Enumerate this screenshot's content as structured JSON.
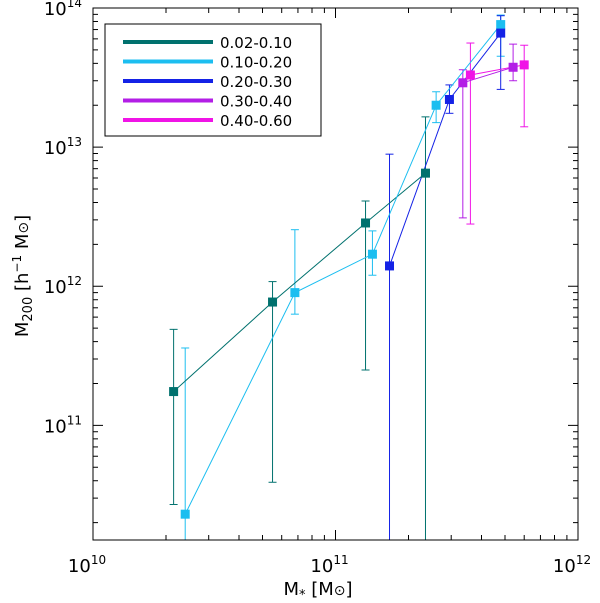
{
  "chart_data": {
    "type": "scatter",
    "x_scale": "log",
    "y_scale": "log",
    "xlim": [
      10000000000.0,
      1000000000000.0
    ],
    "ylim": [
      15000000000.0,
      100000000000000.0
    ],
    "xlabel": {
      "main": "M",
      "sub": "*",
      "rest": " [M",
      "sym": "⊙",
      "close": "]"
    },
    "ylabel": {
      "main": "M",
      "sub": "200",
      "rest": " [h",
      "sup": "−1",
      "rest2": " M",
      "sym": "⊙",
      "close": "]"
    },
    "x_ticks": [
      {
        "value": 10000000000.0,
        "base": "10",
        "exp": "10"
      },
      {
        "value": 100000000000.0,
        "base": "10",
        "exp": "11"
      },
      {
        "value": 1000000000000.0,
        "base": "10",
        "exp": "12"
      }
    ],
    "y_ticks": [
      {
        "value": 100000000000.0,
        "base": "10",
        "exp": "11"
      },
      {
        "value": 1000000000000.0,
        "base": "10",
        "exp": "12"
      },
      {
        "value": 10000000000000.0,
        "base": "10",
        "exp": "13"
      },
      {
        "value": 100000000000000.0,
        "base": "10",
        "exp": "14"
      }
    ],
    "legend_position": "top-left",
    "series": [
      {
        "name": "0.02-0.10",
        "color": "#00716e",
        "points": [
          {
            "x": 21500000000.0,
            "y": 175000000000.0,
            "ylo": 27000000000.0,
            "yhi": 490000000000.0
          },
          {
            "x": 55000000000.0,
            "y": 770000000000.0,
            "ylo": 39000000000.0,
            "yhi": 1080000000000.0
          },
          {
            "x": 133000000000.0,
            "y": 2850000000000.0,
            "ylo": 250000000000.0,
            "yhi": 4100000000000.0
          },
          {
            "x": 235000000000.0,
            "y": 6500000000000.0,
            "ylo": 10000000000.0,
            "yhi": 16500000000000.0
          }
        ]
      },
      {
        "name": "0.10-0.20",
        "color": "#1cbef0",
        "points": [
          {
            "x": 24000000000.0,
            "y": 23000000000.0,
            "ylo": 10000000000.0,
            "yhi": 360000000000.0
          },
          {
            "x": 68000000000.0,
            "y": 900000000000.0,
            "ylo": 630000000000.0,
            "yhi": 2550000000000.0
          },
          {
            "x": 142000000000.0,
            "y": 1700000000000.0,
            "ylo": 1200000000000.0,
            "yhi": 2500000000000.0
          },
          {
            "x": 260000000000.0,
            "y": 20000000000000.0,
            "ylo": 15000000000000.0,
            "yhi": 25000000000000.0
          },
          {
            "x": 480000000000.0,
            "y": 76000000000000.0,
            "ylo": 45000000000000.0,
            "yhi": 89000000000000.0
          }
        ]
      },
      {
        "name": "0.20-0.30",
        "color": "#1422e6",
        "points": [
          {
            "x": 167000000000.0,
            "y": 1400000000000.0,
            "ylo": 10000000000.0,
            "yhi": 8900000000000.0
          },
          {
            "x": 295000000000.0,
            "y": 22000000000000.0,
            "ylo": 17500000000000.0,
            "yhi": 28000000000000.0
          },
          {
            "x": 480000000000.0,
            "y": 66000000000000.0,
            "ylo": 26000000000000.0,
            "yhi": 88000000000000.0
          }
        ]
      },
      {
        "name": "0.30-0.40",
        "color": "#b31ee6",
        "points": [
          {
            "x": 335000000000.0,
            "y": 29000000000000.0,
            "ylo": 3100000000000.0,
            "yhi": 36000000000000.0
          },
          {
            "x": 540000000000.0,
            "y": 37500000000000.0,
            "ylo": 30000000000000.0,
            "yhi": 55000000000000.0
          }
        ]
      },
      {
        "name": "0.40-0.60",
        "color": "#f014e6",
        "points": [
          {
            "x": 360000000000.0,
            "y": 33000000000000.0,
            "ylo": 2800000000000.0,
            "yhi": 56000000000000.0
          },
          {
            "x": 600000000000.0,
            "y": 39000000000000.0,
            "ylo": 14000000000000.0,
            "yhi": 54000000000000.0
          }
        ]
      }
    ]
  }
}
